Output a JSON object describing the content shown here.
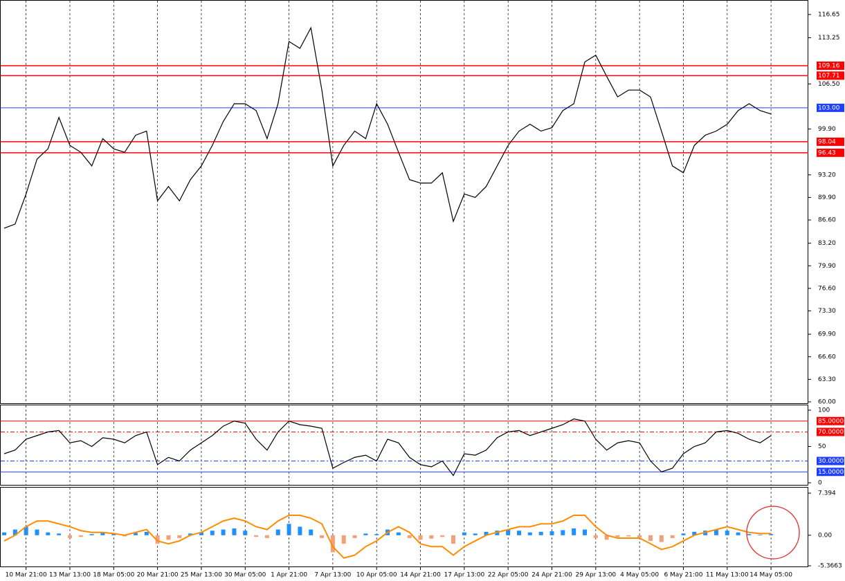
{
  "chart_data": [
    {
      "type": "line",
      "categories": [
        null,
        null,
        "10 Mar 21:00",
        null,
        null,
        null,
        "13 Mar 13:00",
        null,
        null,
        null,
        "18 Mar 05:00",
        null,
        null,
        null,
        "20 Mar 21:00",
        null,
        null,
        null,
        "25 Mar 13:00",
        null,
        null,
        null,
        "30 Mar 05:00",
        null,
        null,
        null,
        "1 Apr 21:00",
        null,
        null,
        null,
        "7 Apr 13:00",
        null,
        null,
        null,
        "10 Apr 05:00",
        null,
        null,
        null,
        "14 Apr 21:00",
        null,
        null,
        null,
        "17 Apr 13:00",
        null,
        null,
        null,
        "22 Apr 05:00",
        null,
        null,
        null,
        "24 Apr 21:00",
        null,
        null,
        null,
        "29 Apr 13:00",
        null,
        null,
        null,
        "4 May 05:00",
        null,
        null,
        null,
        "6 May 21:00",
        null,
        null,
        null,
        "11 May 13:00",
        null,
        null,
        null,
        "14 May 05:00"
      ],
      "color": "#000000",
      "values": [
        85.4,
        86,
        90.4,
        95.5,
        97,
        101.6,
        97.5,
        96.5,
        94.5,
        98.5,
        97,
        96.5,
        99,
        99.6,
        89.4,
        91.5,
        89.4,
        92.5,
        94.5,
        97.5,
        101,
        103.6,
        103.6,
        102.6,
        98.5,
        103.6,
        112.7,
        111.7,
        114.7,
        105.6,
        94.5,
        97.5,
        99.6,
        98.5,
        103.6,
        100.6,
        96.5,
        92.5,
        92,
        92,
        93.5,
        86.4,
        90.4,
        89.9,
        91.5,
        94.5,
        97.5,
        99.6,
        100.6,
        99.6,
        100.1,
        102.6,
        103.6,
        109.7,
        110.7,
        107.6,
        104.6,
        105.6,
        105.6,
        104.6,
        99.6,
        94.5,
        93.5,
        97.5,
        99,
        99.6,
        100.6,
        102.6,
        103.6,
        102.6,
        102.1
      ],
      "ylim": [
        60,
        118.77
      ],
      "yticks": [
        116.65,
        113.25,
        {
          "value": 106.5,
          "label": "106.50"
        },
        {
          "value": 99.9,
          "label": "99.90"
        },
        {
          "value": 93.2,
          "label": "93.20"
        },
        {
          "value": 89.9,
          "label": "89.90"
        },
        {
          "value": 86.6,
          "label": "86.60"
        },
        {
          "value": 83.2,
          "label": "83.20"
        },
        {
          "value": 79.9,
          "label": "79.90"
        },
        {
          "value": 76.6,
          "label": "76.60"
        },
        {
          "value": 73.3,
          "label": "73.30"
        },
        {
          "value": 69.9,
          "label": "69.90"
        },
        {
          "value": 66.6,
          "label": "66.60"
        },
        {
          "value": 63.3,
          "label": "63.30"
        },
        {
          "value": 60,
          "label": "60.00"
        }
      ],
      "levels": [
        {
          "value": 109.16,
          "label": "109.16",
          "color": "#ff0000"
        },
        {
          "value": 107.71,
          "label": "107.71",
          "color": "#ff0000"
        },
        {
          "value": 103,
          "label": "103.00",
          "color": "#1f3fff"
        },
        {
          "value": 98.04,
          "label": "98.04",
          "color": "#ff0000"
        },
        {
          "value": 96.43,
          "label": "96.43",
          "color": "#ff0000"
        }
      ]
    },
    {
      "type": "line",
      "color": "#000000",
      "values": [
        40,
        45,
        60,
        65,
        70,
        72,
        55,
        58,
        50,
        62,
        60,
        55,
        65,
        70,
        25,
        35,
        30,
        45,
        55,
        65,
        78,
        85,
        82,
        60,
        45,
        70,
        85,
        80,
        78,
        75,
        20,
        28,
        35,
        38,
        30,
        60,
        55,
        35,
        25,
        22,
        30,
        10,
        40,
        38,
        45,
        62,
        70,
        72,
        65,
        70,
        75,
        80,
        88,
        85,
        60,
        45,
        55,
        58,
        55,
        30,
        15,
        20,
        40,
        50,
        55,
        70,
        72,
        68,
        60,
        55,
        65
      ],
      "ylim": [
        0,
        100
      ],
      "yticks": [
        100,
        50,
        0
      ],
      "levels": [
        {
          "value": 85,
          "label": "85.0000",
          "color": "#ff0000"
        },
        {
          "value": 70,
          "label": "70.0000",
          "color": "#ff0000"
        },
        {
          "value": 30,
          "label": "30.0000",
          "color": "#1f3fff"
        },
        {
          "value": 15,
          "label": "15.0000",
          "color": "#1f3fff"
        }
      ]
    },
    {
      "type": "combo",
      "ylim": [
        -5.3663,
        8.24
      ],
      "yticks": [
        {
          "value": 7.394,
          "label": "7.394"
        },
        {
          "value": 0,
          "label": "0.00"
        },
        -5.3663
      ],
      "series": [
        {
          "type": "bar",
          "color": "#1e90ff",
          "negative_color": "#f4a07a",
          "values": [
            0.5,
            1,
            1.5,
            1,
            0.5,
            0.3,
            -0.5,
            -0.3,
            0.2,
            0.5,
            0.3,
            -0.2,
            0.4,
            0.6,
            -1.5,
            -0.8,
            -0.5,
            0.3,
            0.5,
            0.8,
            1,
            1.2,
            0.8,
            -0.3,
            -0.5,
            1,
            2,
            1.5,
            1,
            -0.5,
            -3,
            -1.5,
            -0.5,
            0.3,
            0.2,
            1,
            0.5,
            -0.5,
            -0.8,
            -0.6,
            -0.3,
            -1.5,
            0.5,
            0.3,
            0.6,
            0.8,
            1,
            0.8,
            0.5,
            0.6,
            0.7,
            0.9,
            1.2,
            1,
            -0.5,
            -0.8,
            -0.3,
            -0.2,
            -0.4,
            -1,
            -1.2,
            -0.5,
            0.3,
            0.6,
            0.8,
            1,
            0.8,
            0.5,
            0.2,
            0.1,
            0.2
          ]
        },
        {
          "type": "line",
          "color": "#ff8c00",
          "values": [
            -1,
            0,
            1.5,
            2.5,
            2.5,
            2,
            1.5,
            0.8,
            0.5,
            0.5,
            0.3,
            0,
            0.5,
            1,
            -1,
            -1.5,
            -1,
            0,
            0.5,
            1.5,
            2.5,
            3,
            2.5,
            1.5,
            1,
            2.5,
            3.5,
            3.5,
            3,
            2,
            -2,
            -4,
            -3.5,
            -2,
            -1,
            0.5,
            1.5,
            0.5,
            -1.5,
            -2,
            -2,
            -3.5,
            -2,
            -1,
            0,
            0.5,
            1,
            1.5,
            1.5,
            2,
            2,
            2.5,
            3.5,
            3.5,
            1.5,
            0,
            -0.5,
            -0.5,
            -0.5,
            -1.5,
            -2.5,
            -2,
            -1,
            0,
            0.5,
            1,
            1.5,
            1,
            0.5,
            0.3,
            0.3
          ]
        }
      ]
    }
  ]
}
